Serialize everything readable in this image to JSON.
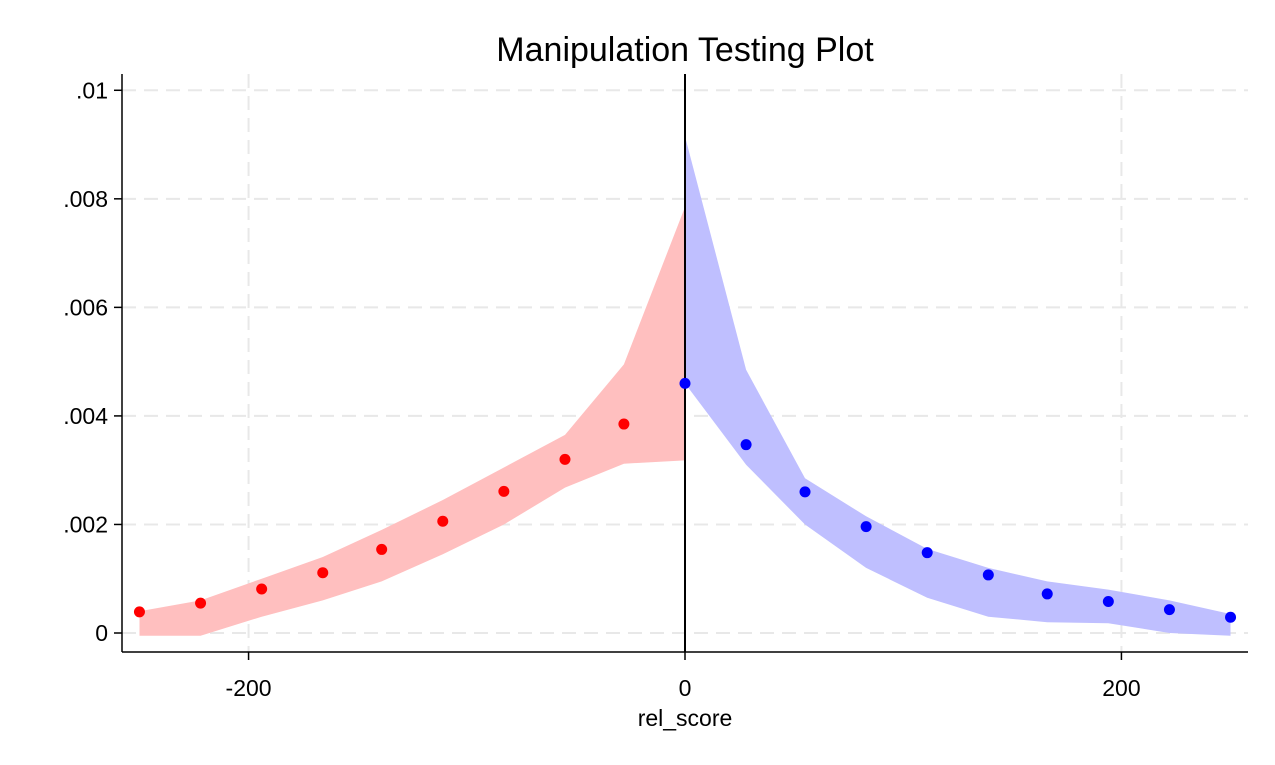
{
  "chart_data": {
    "type": "scatter",
    "title": "Manipulation Testing Plot",
    "xlabel": "rel_score",
    "ylabel": "",
    "xlim": [
      -258,
      258
    ],
    "ylim": [
      -0.00035,
      0.0103
    ],
    "x_ticks": [
      -200,
      0,
      200
    ],
    "x_tick_labels": [
      "-200",
      "0",
      "200"
    ],
    "y_ticks": [
      0,
      0.002,
      0.004,
      0.006,
      0.008,
      0.01
    ],
    "y_tick_labels": [
      "0",
      ".002",
      ".004",
      ".006",
      ".008",
      ".01"
    ],
    "grid": true,
    "cutoff": 0,
    "colors": {
      "left_points": "#ff0000",
      "left_band": "#ffbfbf",
      "right_points": "#0000ff",
      "right_band": "#bfbfff",
      "grid": "#e8e8e8",
      "axis": "#000000"
    },
    "series": [
      {
        "side": "left",
        "points": {
          "x": [
            -250,
            -222,
            -194,
            -166,
            -139,
            -111,
            -83,
            -55,
            -28
          ],
          "y": [
            0.00039,
            0.00055,
            0.00081,
            0.00111,
            0.00154,
            0.00206,
            0.00261,
            0.0032,
            0.00385
          ]
        },
        "band": {
          "x": [
            -250,
            -222,
            -194,
            -166,
            -139,
            -111,
            -83,
            -55,
            -28,
            0
          ],
          "upper": [
            0.0004,
            0.0006,
            0.001,
            0.0014,
            0.0019,
            0.00245,
            0.00305,
            0.00365,
            0.00495,
            0.00785
          ],
          "lower": [
            -5e-05,
            -5e-05,
            0.0003,
            0.0006,
            0.00095,
            0.00145,
            0.002,
            0.00268,
            0.00312,
            0.00318
          ]
        }
      },
      {
        "side": "right",
        "points": {
          "x": [
            0,
            28,
            55,
            83,
            111,
            139,
            166,
            194,
            222,
            250
          ],
          "y": [
            0.0046,
            0.00347,
            0.0026,
            0.00196,
            0.00148,
            0.00107,
            0.00072,
            0.00058,
            0.00043,
            0.00029
          ]
        },
        "band": {
          "x": [
            0,
            28,
            55,
            83,
            111,
            139,
            166,
            194,
            222,
            250
          ],
          "upper": [
            0.00915,
            0.00485,
            0.00285,
            0.00215,
            0.00155,
            0.0012,
            0.00095,
            0.0008,
            0.0006,
            0.00035
          ],
          "lower": [
            0.0046,
            0.0031,
            0.002,
            0.0012,
            0.00065,
            0.0003,
            0.0002,
            0.00018,
            0.0,
            -5e-05
          ]
        }
      }
    ]
  }
}
